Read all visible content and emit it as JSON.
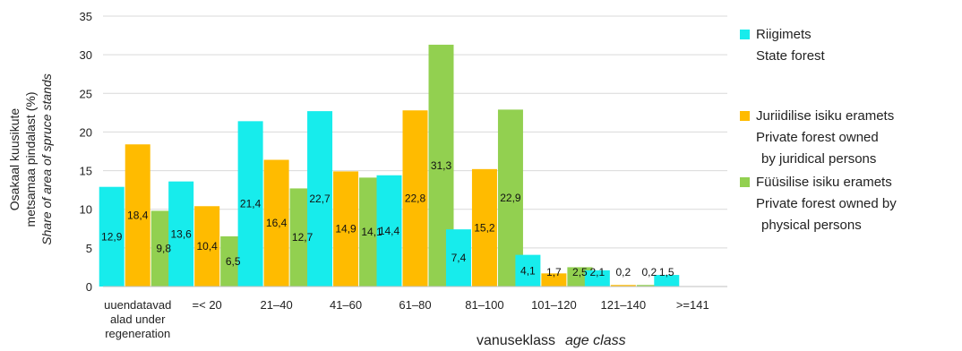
{
  "chart_data": {
    "type": "bar",
    "ylabel_line1": "Osakaal kuusikute",
    "ylabel_line2": "metsamaa pindalast (%)",
    "ylabel_line3": "Share of area of spruce stands",
    "xlabel_et": "vanuseklass",
    "xlabel_en": "age class",
    "ylim": [
      0,
      35
    ],
    "yticks": [
      0,
      5,
      10,
      15,
      20,
      25,
      30,
      35
    ],
    "grid": true,
    "legend_position": "right",
    "categories": [
      [
        "uuendatavad",
        "alad under",
        "regeneration"
      ],
      [
        "=< 20"
      ],
      [
        "21–40"
      ],
      [
        "41–60"
      ],
      [
        "61–80"
      ],
      [
        "81–100"
      ],
      [
        "101–120"
      ],
      [
        "121–140"
      ],
      [
        ">=141"
      ]
    ],
    "series": [
      {
        "name_line1": "Riigimets",
        "name_line2": "State forest",
        "color": "#17ecec",
        "values": [
          12.9,
          13.6,
          21.4,
          22.7,
          14.4,
          7.4,
          4.1,
          2.1,
          1.5
        ],
        "labels": [
          "12,9",
          "13,6",
          "21,4",
          "22,7",
          "14,4",
          "7,4",
          "4,1",
          "2,1",
          "1,5"
        ]
      },
      {
        "name_line1": "Juriidilise isiku eramets",
        "name_line2": "Private forest owned",
        "name_line3": "by juridical persons",
        "color": "#ffbb00",
        "values": [
          18.4,
          10.4,
          16.4,
          14.9,
          22.8,
          15.2,
          1.7,
          0.2,
          null
        ],
        "labels": [
          "18,4",
          "10,4",
          "16,4",
          "14,9",
          "22,8",
          "15,2",
          "1,7",
          "0,2",
          ""
        ]
      },
      {
        "name_line1": "Füüsilise isiku eramets",
        "name_line2": "Private forest owned by",
        "name_line3": "physical persons",
        "color": "#92d050",
        "values": [
          9.8,
          6.5,
          12.7,
          14.1,
          31.3,
          22.9,
          2.5,
          0.2,
          null
        ],
        "labels": [
          "9,8",
          "6,5",
          "12,7",
          "14,1",
          "31,3",
          "22,9",
          "2,5",
          "0,2",
          ""
        ]
      }
    ]
  }
}
